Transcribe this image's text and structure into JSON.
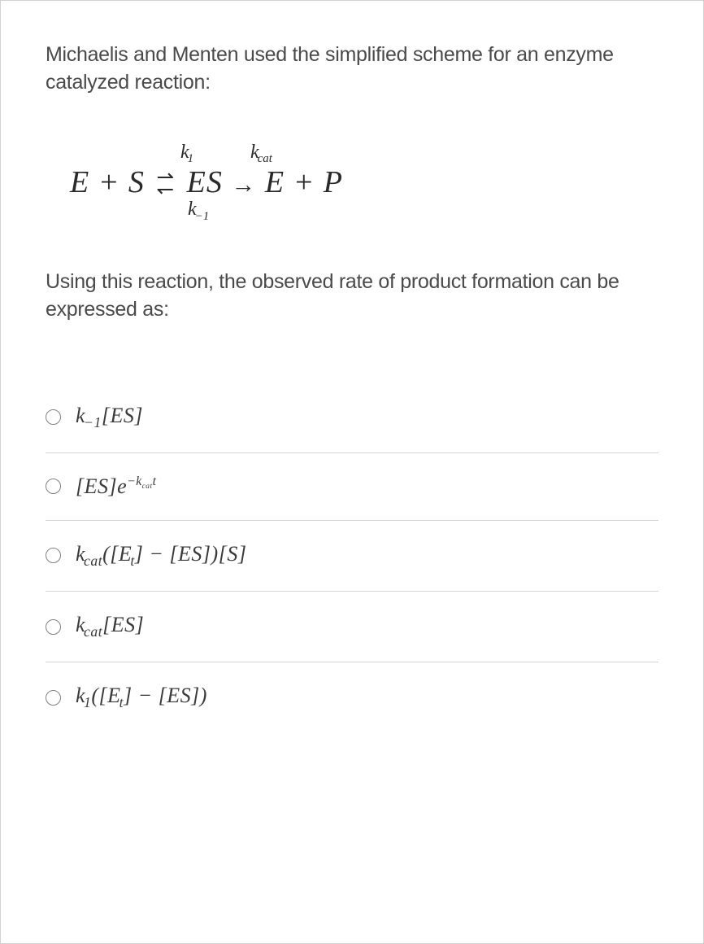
{
  "text_color": "#4a4a4a",
  "border_color": "#d0d0d0",
  "divider_color": "#d5d5d5",
  "background_color": "#ffffff",
  "question": {
    "intro": "Michaelis and Menten used the simplified scheme for an enzyme catalyzed reaction:",
    "prompt": "Using this reaction, the observed rate of product formation can be expressed as:"
  },
  "equation": {
    "top_label_k1": "k",
    "top_label_k1_sub": "1",
    "top_label_kcat": "k",
    "top_label_kcat_sub": "cat",
    "bottom_label": "k",
    "bottom_label_sub": "−1",
    "lhs": "E + S",
    "mid": "ES",
    "rhs": "E + P",
    "eq_arrow_top": "⇀",
    "eq_arrow_bottom": "↽",
    "eq_arrow_right": "→"
  },
  "options": [
    {
      "id": "opt-a",
      "html": "<i>k</i><span class=\"sub\">−1</span>[<i>ES</i>]"
    },
    {
      "id": "opt-b",
      "html": "[<i>ES</i>]<i>e</i><span class=\"sup\">−<i>k</i><span class=\"subsub\">cat</span><i>t</i></span>"
    },
    {
      "id": "opt-c",
      "html": "<i>k</i><span class=\"sub\">cat</span>([<i>E</i><span class=\"sub\">t</span>] − [<i>ES</i>])[<i>S</i>]"
    },
    {
      "id": "opt-d",
      "html": "<i>k</i><span class=\"sub\">cat</span>[<i>ES</i>]"
    },
    {
      "id": "opt-e",
      "html": "<i>k</i><span class=\"sub\">1</span>([<i>E</i><span class=\"sub\">t</span>] − [<i>ES</i>])"
    }
  ]
}
